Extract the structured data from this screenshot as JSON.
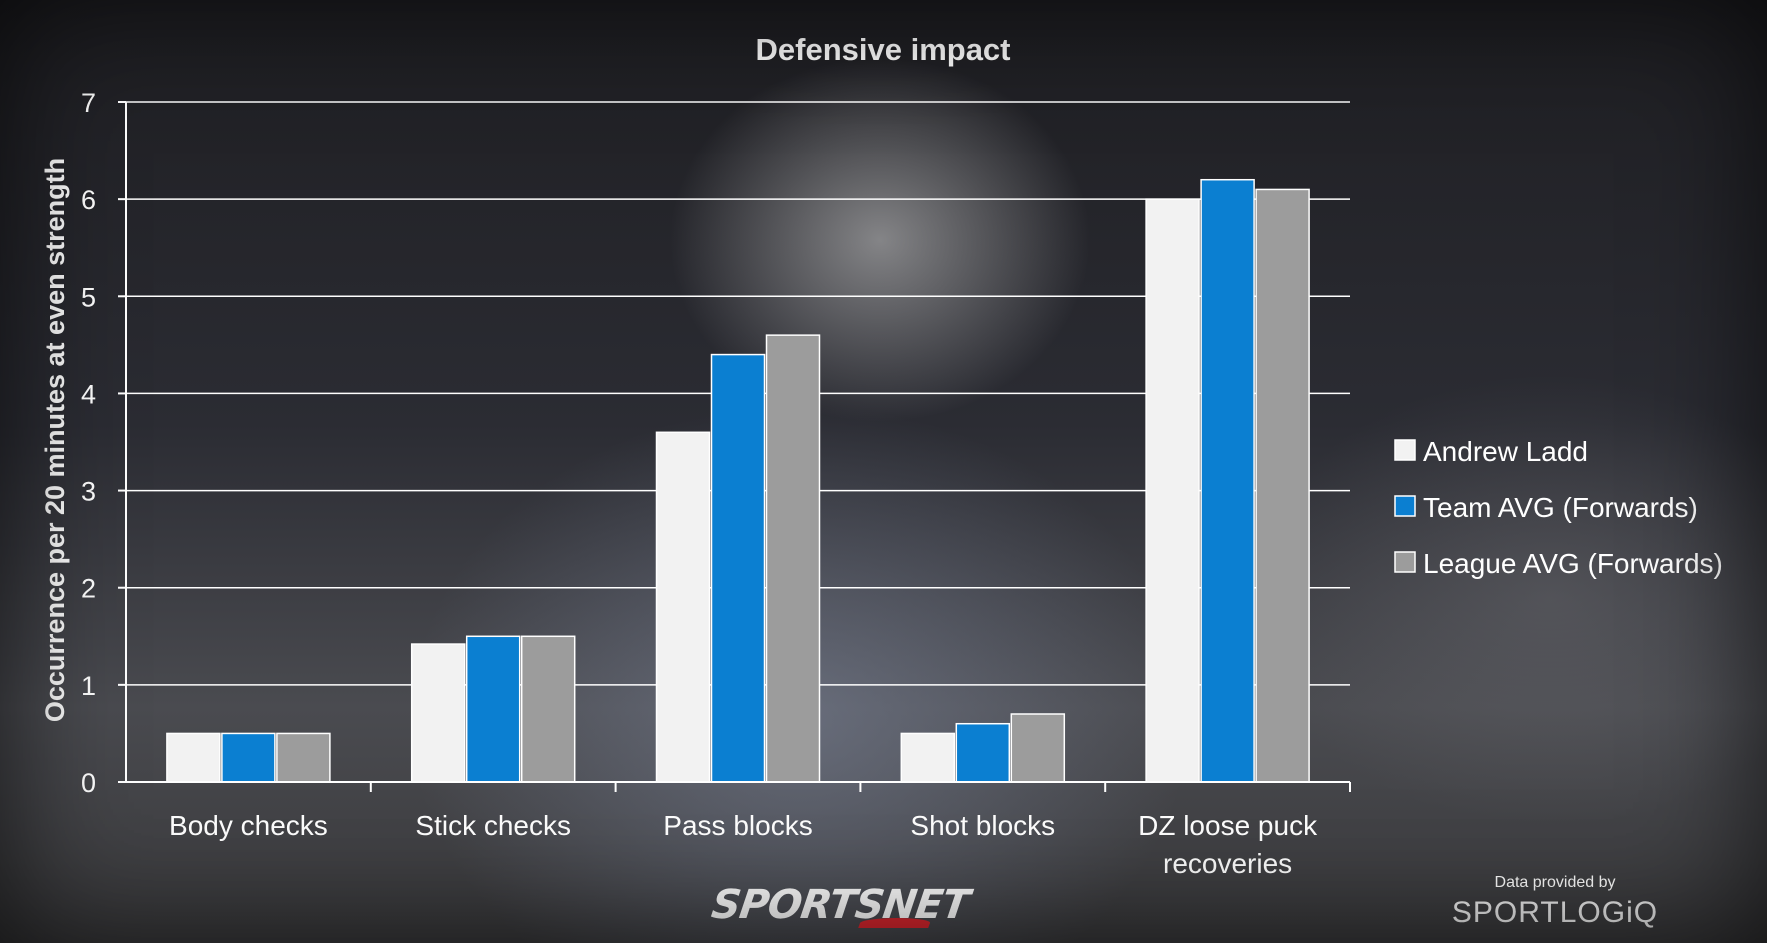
{
  "chart_data": {
    "type": "bar",
    "title": "Defensive impact",
    "xlabel": "",
    "ylabel": "Occurrence per 20 minutes at even strength",
    "categories": [
      "Body checks",
      "Stick checks",
      "Pass blocks",
      "Shot blocks",
      "DZ loose puck recoveries"
    ],
    "series": [
      {
        "name": "Andrew Ladd",
        "values": [
          0.5,
          1.42,
          3.6,
          0.5,
          6.0
        ],
        "color": "#f2f2f2"
      },
      {
        "name": "Team AVG (Forwards)",
        "values": [
          0.5,
          1.5,
          4.4,
          0.6,
          6.2
        ],
        "color": "#0b7fd1"
      },
      {
        "name": "League AVG (Forwards)",
        "values": [
          0.5,
          1.5,
          4.6,
          0.7,
          6.1
        ],
        "color": "#9c9c9c"
      }
    ],
    "ylim": [
      0,
      7
    ],
    "yticks": [
      "0",
      "1",
      "2",
      "3",
      "4",
      "5",
      "6",
      "7"
    ],
    "grid": true,
    "legend_position": "right"
  },
  "branding": {
    "publisher": "SPORTSNET",
    "credit": "Data provided by",
    "provider": "SPORTLOGiQ"
  }
}
